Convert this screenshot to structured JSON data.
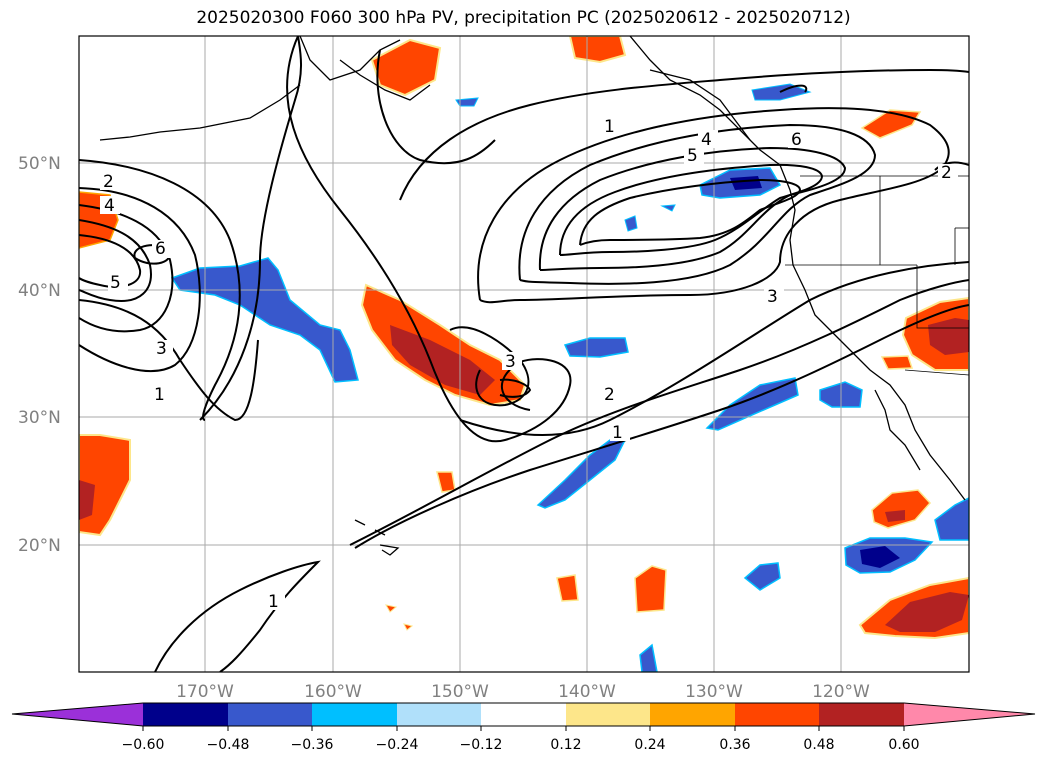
{
  "title": "2025020300 F060 300 hPa PV, precipitation PC (2025020612 - 2025020712)",
  "lat_ticks": [
    "50°N",
    "40°N",
    "30°N",
    "20°N"
  ],
  "lon_ticks": [
    "170°W",
    "160°W",
    "150°W",
    "140°W",
    "130°W",
    "120°W"
  ],
  "contour_labels": [
    "2",
    "4",
    "6",
    "5",
    "3",
    "1",
    "1",
    "4",
    "5",
    "6",
    "2",
    "3",
    "3",
    "2",
    "1",
    "1"
  ],
  "colorbar": {
    "labels": [
      "−0.60",
      "−0.48",
      "−0.36",
      "−0.24",
      "−0.12",
      "0.12",
      "0.24",
      "0.36",
      "0.48",
      "0.60"
    ],
    "colors": {
      "under": "#9b30d9",
      "c1": "#00008b",
      "c2": "#3858cc",
      "c3": "#00bfff",
      "c4": "#b0e0fa",
      "c5": "#ffffff",
      "c6": "#fde68a",
      "c7": "#ffa500",
      "c8": "#ff4500",
      "c9": "#b22222",
      "over": "#ff88aa"
    }
  }
}
